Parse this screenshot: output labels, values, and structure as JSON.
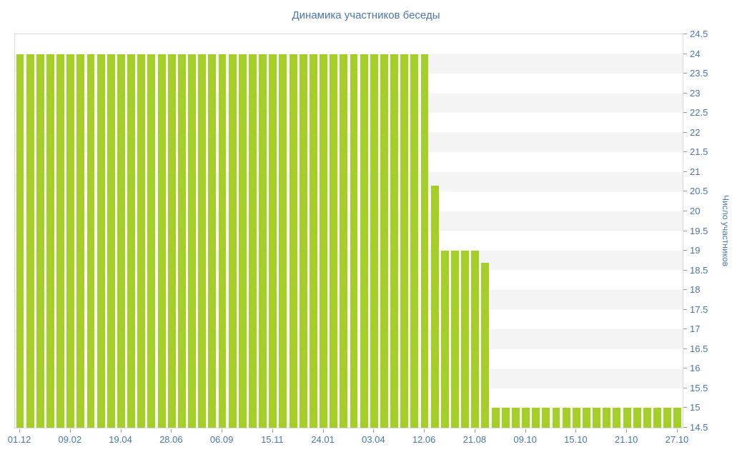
{
  "title": "Динамика участников беседы",
  "colors": {
    "bar": "#a6ce29",
    "text": "#4a76a8",
    "stripe": "#f4f4f4",
    "axis_line": "#d8d8d8",
    "tick": "#9a9a9a"
  },
  "chart_data": {
    "type": "bar",
    "title": "Динамика участников беседы",
    "xlabel": "",
    "ylabel": "Число участников",
    "ylim": [
      14.5,
      24.5
    ],
    "y_tick_step": 0.5,
    "grid": "zebra-horizontal",
    "legend": "none",
    "bar_color": "#a6ce29",
    "x_tick_every": 5,
    "x_tick_labels": [
      "01.12",
      "09.02",
      "19.04",
      "28.06",
      "06.09",
      "15.11",
      "24.01",
      "03.04",
      "12.06",
      "21.08",
      "09.10",
      "15.10",
      "21.10",
      "27.10"
    ],
    "values": [
      24,
      24,
      24,
      24,
      24,
      24,
      24,
      24,
      24,
      24,
      24,
      24,
      24,
      24,
      24,
      24,
      24,
      24,
      24,
      24,
      24,
      24,
      24,
      24,
      24,
      24,
      24,
      24,
      24,
      24,
      24,
      24,
      24,
      24,
      24,
      24,
      24,
      24,
      24,
      24,
      24,
      20.65,
      19,
      19,
      19,
      19,
      18.7,
      15,
      15,
      15,
      15,
      15,
      15,
      15,
      15,
      15,
      15,
      15,
      15,
      15,
      15,
      15,
      15,
      15,
      15,
      15
    ]
  }
}
